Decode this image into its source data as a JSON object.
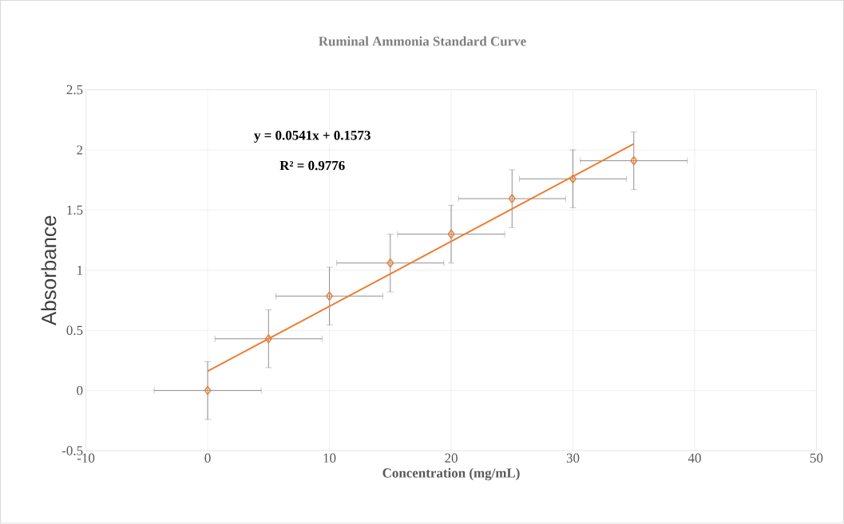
{
  "chart_data": {
    "type": "scatter",
    "title": "Ruminal Ammonia Standard Curve",
    "xlabel": "Concentration (mg/mL)",
    "ylabel": "Absorbance",
    "annotations": [
      "y = 0.0541x + 0.1573",
      "R² = 0.9776"
    ],
    "xlim": [
      -10,
      50
    ],
    "ylim": [
      -0.5,
      2.5
    ],
    "xticks": [
      -10,
      0,
      10,
      20,
      30,
      40,
      50
    ],
    "yticks": [
      -0.5,
      0,
      0.5,
      1,
      1.5,
      2,
      2.5
    ],
    "grid": true,
    "marker": "diamond",
    "series": [
      {
        "color": "#ed7d31",
        "x": [
          0,
          5,
          10,
          15,
          20,
          25,
          30,
          35
        ],
        "values": [
          0,
          0.43,
          0.785,
          1.06,
          1.3,
          1.595,
          1.76,
          1.91
        ],
        "errors": [
          0.24,
          0.24,
          0.24,
          0.24,
          0.24,
          0.24,
          0.24,
          0.24
        ],
        "xerrors": [
          4.4,
          4.4,
          4.4,
          4.4,
          4.4,
          4.4,
          4.4,
          4.4
        ]
      },
      {
        "type": "line",
        "color": "#ed7d31",
        "x": [
          0,
          35
        ],
        "values": [
          0.16,
          2.05
        ],
        "marker": "none"
      }
    ]
  }
}
